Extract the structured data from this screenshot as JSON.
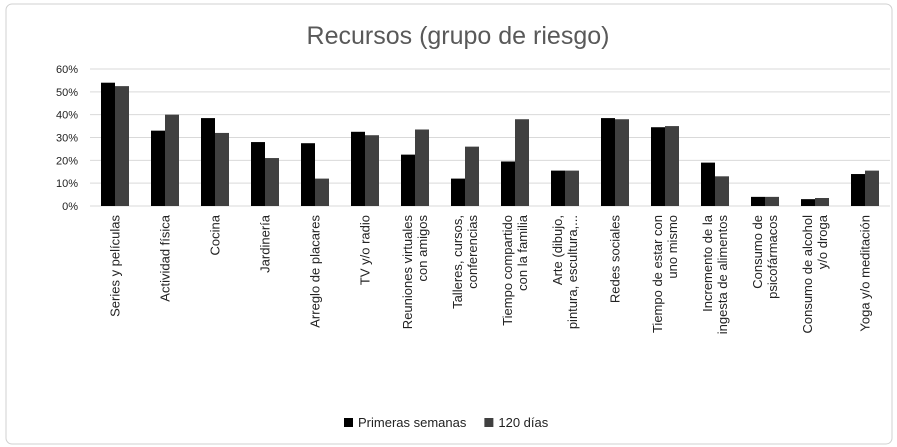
{
  "chart_data": {
    "type": "bar",
    "title": "Recursos (grupo de riesgo)",
    "categories": [
      "Series y películas",
      "Actividad física",
      "Cocina",
      "Jardinería",
      "Arreglo de placares",
      "TV y/o radio",
      "Reuniones virtuales\ncon amigos",
      "Talleres, cursos,\nconferencias",
      "Tiempo compartido\ncon la familia",
      "Arte (dibujo,\npintura, escultura,...",
      "Redes sociales",
      "Tiempo de estar con\nuno mismo",
      "Incremento de la\ningesta de alimentos",
      "Consumo de\npsicofármacos",
      "Consumo de alcohol\ny/o droga",
      "Yoga y/o meditación"
    ],
    "series": [
      {
        "name": "Primeras semanas",
        "color": "#000000",
        "values": [
          54,
          33,
          38.5,
          28,
          27.5,
          32.5,
          22.5,
          12,
          19.5,
          15.5,
          38.5,
          34.5,
          19,
          4,
          3,
          14
        ]
      },
      {
        "name": "120 días",
        "color": "#404040",
        "values": [
          52.5,
          40,
          32,
          21,
          12,
          31,
          33.5,
          26,
          38,
          15.5,
          38,
          35,
          13,
          4,
          3.5,
          15.5
        ]
      }
    ],
    "ylim": [
      0,
      60
    ],
    "yticks": [
      {
        "value": 0,
        "label": "0%"
      },
      {
        "value": 10,
        "label": "10%"
      },
      {
        "value": 20,
        "label": "20%"
      },
      {
        "value": 30,
        "label": "30%"
      },
      {
        "value": 40,
        "label": "40%"
      },
      {
        "value": 50,
        "label": "50%"
      },
      {
        "value": 60,
        "label": "60%"
      }
    ],
    "grid": true,
    "legend": "bottom"
  }
}
